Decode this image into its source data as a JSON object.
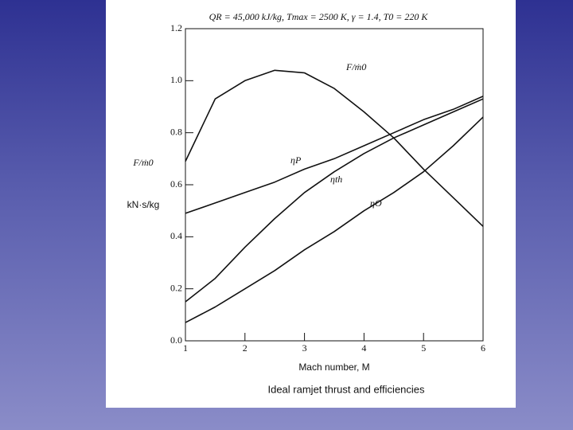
{
  "chart_data": {
    "type": "line",
    "title": "QR = 45,000 kJ/kg, Tmax = 2500 K, γ = 1.4, T0 = 220 K",
    "x_label": "Mach number, M",
    "y_label": "F/ṁ0",
    "y_unit": "kN·s/kg",
    "caption": "Ideal ramjet thrust and efficiencies",
    "x": [
      1,
      1.5,
      2,
      2.5,
      3,
      3.5,
      4,
      4.5,
      5,
      5.5,
      6
    ],
    "series": [
      {
        "name": "F/ṁ0",
        "color": "#111111",
        "values": [
          0.69,
          0.93,
          1.0,
          1.04,
          1.03,
          0.97,
          0.88,
          0.78,
          0.66,
          0.55,
          0.44
        ]
      },
      {
        "name": "ηP",
        "color": "#111111",
        "values": [
          0.49,
          0.53,
          0.57,
          0.61,
          0.66,
          0.7,
          0.75,
          0.8,
          0.85,
          0.89,
          0.94
        ]
      },
      {
        "name": "ηth",
        "color": "#111111",
        "values": [
          0.15,
          0.24,
          0.36,
          0.47,
          0.57,
          0.65,
          0.72,
          0.78,
          0.83,
          0.88,
          0.93
        ]
      },
      {
        "name": "ηO",
        "color": "#111111",
        "values": [
          0.07,
          0.13,
          0.2,
          0.27,
          0.35,
          0.42,
          0.5,
          0.57,
          0.65,
          0.75,
          0.86
        ]
      }
    ],
    "xlim": [
      1,
      6
    ],
    "xticks": [
      1,
      2,
      3,
      4,
      5,
      6
    ],
    "ylim": [
      0,
      1.2
    ],
    "yticks": [
      {
        "value": 0,
        "label": "0.0"
      },
      0.2,
      0.4,
      0.6,
      0.8,
      {
        "value": 1,
        "label": "1.0"
      },
      1.2
    ]
  }
}
